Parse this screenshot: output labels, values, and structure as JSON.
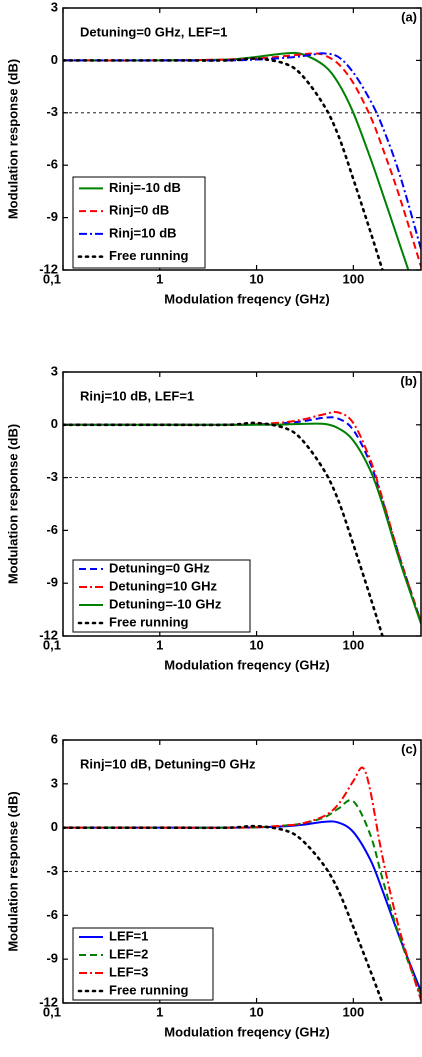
{
  "chart_data": [
    {
      "type": "line",
      "annotation": "Detuning=0 GHz, LEF=1",
      "panel_label": "(a)",
      "xlabel": "Modulation freqency (GHz)",
      "ylabel": "Modulation response (dB)",
      "xscale": "log",
      "xlim": [
        0.1,
        500
      ],
      "ylim": [
        -12,
        3
      ],
      "xticks": [
        {
          "value": 0.1,
          "label": "0,1"
        },
        1,
        10,
        100
      ],
      "yticks": [
        -12,
        -9,
        -6,
        -3,
        0,
        3
      ],
      "hline": -3,
      "legend": "lower left",
      "series": [
        {
          "name": "Rinj=-10 dB",
          "color": "#008000",
          "dash": "solid",
          "x": [
            0.1,
            1,
            5,
            10,
            20,
            30,
            50,
            70,
            100,
            150,
            200,
            300,
            370
          ],
          "values": [
            0,
            0,
            0.05,
            0.2,
            0.4,
            0.35,
            -0.3,
            -1.3,
            -3,
            -5.6,
            -7.6,
            -10.5,
            -12
          ]
        },
        {
          "name": "Rinj=0 dB",
          "color": "#ff0000",
          "dash": "dash",
          "x": [
            0.1,
            1,
            5,
            10,
            20,
            30,
            40,
            50,
            70,
            100,
            150,
            200,
            300,
            500
          ],
          "values": [
            0,
            0,
            0.05,
            0.1,
            0.25,
            0.35,
            0.4,
            0.3,
            -0.2,
            -1.3,
            -3.2,
            -5,
            -7.8,
            -11.8
          ]
        },
        {
          "name": "Rinj=10 dB",
          "color": "#0000ff",
          "dash": "dashdot",
          "x": [
            0.1,
            1,
            5,
            10,
            20,
            30,
            40,
            50,
            70,
            100,
            150,
            200,
            300,
            500
          ],
          "values": [
            0,
            0,
            0,
            0.05,
            0.15,
            0.25,
            0.35,
            0.4,
            0.2,
            -0.7,
            -2.3,
            -3.8,
            -6.5,
            -10.8
          ]
        },
        {
          "name": "Free running",
          "color": "#000000",
          "dash": "dot",
          "x": [
            0.1,
            1,
            5,
            10,
            20,
            30,
            50,
            70,
            100,
            150,
            200
          ],
          "values": [
            0,
            0,
            0,
            0.1,
            -0.2,
            -0.9,
            -2.6,
            -4.3,
            -6.8,
            -9.8,
            -12
          ]
        }
      ]
    },
    {
      "type": "line",
      "annotation": "Rinj=10 dB, LEF=1",
      "panel_label": "(b)",
      "xlabel": "Modulation freqency (GHz)",
      "ylabel": "Modulation response (dB)",
      "xscale": "log",
      "xlim": [
        0.1,
        500
      ],
      "ylim": [
        -12,
        3
      ],
      "xticks": [
        {
          "value": 0.1,
          "label": "0,1"
        },
        1,
        10,
        100
      ],
      "yticks": [
        -12,
        -9,
        -6,
        -3,
        0,
        3
      ],
      "hline": -3,
      "legend": "lower left",
      "series": [
        {
          "name": "Detuning=0 GHz",
          "color": "#0000ff",
          "dash": "dash",
          "x": [
            0.1,
            1,
            5,
            10,
            20,
            30,
            50,
            70,
            100,
            150,
            200,
            300,
            500
          ],
          "values": [
            0,
            0,
            0,
            0.02,
            0.1,
            0.2,
            0.4,
            0.35,
            -0.3,
            -2.2,
            -4.3,
            -7.5,
            -11.2
          ]
        },
        {
          "name": "Detuning=10 GHz",
          "color": "#ff0000",
          "dash": "dashdot",
          "x": [
            0.1,
            1,
            5,
            10,
            20,
            30,
            50,
            70,
            100,
            150,
            200,
            300,
            500
          ],
          "values": [
            0,
            0,
            0,
            0.03,
            0.15,
            0.3,
            0.6,
            0.7,
            0.1,
            -2,
            -4.2,
            -7.5,
            -11.2
          ]
        },
        {
          "name": "Detuning=-10 GHz",
          "color": "#008000",
          "dash": "solid",
          "x": [
            0.1,
            1,
            5,
            10,
            20,
            30,
            50,
            70,
            100,
            150,
            200,
            300,
            500
          ],
          "values": [
            0,
            0,
            0,
            0,
            0.02,
            0.05,
            0.05,
            -0.2,
            -0.9,
            -2.6,
            -4.5,
            -7.7,
            -11.3
          ]
        },
        {
          "name": "Free running",
          "color": "#000000",
          "dash": "dot",
          "x": [
            0.1,
            1,
            5,
            10,
            20,
            30,
            50,
            70,
            100,
            150,
            200
          ],
          "values": [
            0,
            0,
            0,
            0.1,
            -0.2,
            -0.9,
            -2.6,
            -4.3,
            -6.8,
            -9.8,
            -12
          ]
        }
      ]
    },
    {
      "type": "line",
      "annotation": "Rinj=10 dB, Detuning=0 GHz",
      "panel_label": "(c)",
      "xlabel": "Modulation freqency (GHz)",
      "ylabel": "Modulation response (dB)",
      "xscale": "log",
      "xlim": [
        0.1,
        500
      ],
      "ylim": [
        -12,
        6
      ],
      "xticks": [
        {
          "value": 0.1,
          "label": "0,1"
        },
        1,
        10,
        100
      ],
      "yticks": [
        -12,
        -9,
        -6,
        -3,
        0,
        3,
        6
      ],
      "hline": -3,
      "legend": "lower left",
      "series": [
        {
          "name": "LEF=1",
          "color": "#0000ff",
          "dash": "solid",
          "x": [
            0.1,
            1,
            5,
            10,
            20,
            30,
            50,
            70,
            100,
            150,
            200,
            300,
            500
          ],
          "values": [
            0,
            0,
            0,
            0.02,
            0.1,
            0.2,
            0.4,
            0.35,
            -0.3,
            -2.2,
            -4.3,
            -7.5,
            -11.2
          ]
        },
        {
          "name": "LEF=2",
          "color": "#008000",
          "dash": "dash",
          "x": [
            0.1,
            1,
            5,
            10,
            20,
            30,
            50,
            70,
            100,
            150,
            200,
            300,
            500
          ],
          "values": [
            0,
            0,
            0,
            0.03,
            0.15,
            0.3,
            0.7,
            1.3,
            1.8,
            -0.5,
            -3.5,
            -7.5,
            -11.5
          ]
        },
        {
          "name": "LEF=3",
          "color": "#ff0000",
          "dash": "dashdot",
          "x": [
            0.1,
            1,
            5,
            10,
            20,
            30,
            50,
            70,
            100,
            125,
            150,
            200,
            300,
            500
          ],
          "values": [
            0,
            0,
            0,
            0.03,
            0.15,
            0.3,
            0.8,
            1.6,
            3.2,
            4.1,
            2.5,
            -2,
            -7,
            -11.8
          ]
        },
        {
          "name": "Free running",
          "color": "#000000",
          "dash": "dot",
          "x": [
            0.1,
            1,
            5,
            10,
            20,
            30,
            50,
            70,
            100,
            150,
            200
          ],
          "values": [
            0,
            0,
            0,
            0.1,
            -0.2,
            -0.9,
            -2.6,
            -4.3,
            -6.8,
            -9.8,
            -12
          ]
        }
      ]
    }
  ]
}
